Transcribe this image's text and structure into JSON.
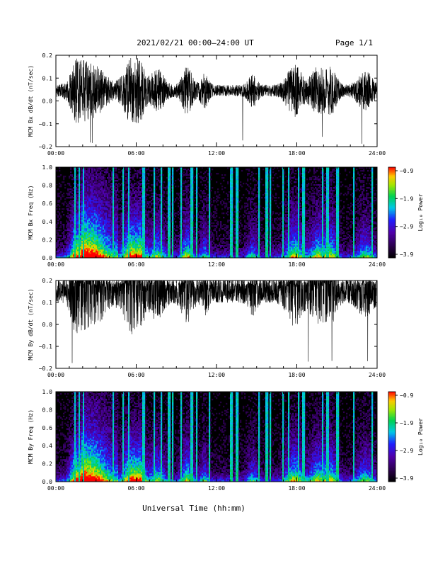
{
  "header": {
    "title": "2021/02/21  00:00–24:00 UT",
    "page": "Page 1/1"
  },
  "footer": {
    "xlabel": "Universal Time (hh:mm)"
  },
  "chart_data": [
    {
      "type": "line",
      "ylabel": "MCM Bx dB/dt (nT/sec)",
      "xticks": [
        "00:00",
        "06:00",
        "12:00",
        "18:00",
        "24:00"
      ],
      "xlim": [
        0,
        24
      ],
      "ylim": [
        -0.2,
        0.2
      ],
      "yticks": [
        "0.2",
        "0.1",
        "0.0",
        "−0.1",
        "−0.2"
      ],
      "series": [
        {
          "color": "#000000"
        }
      ]
    },
    {
      "type": "heatmap",
      "ylabel": "MCM Bx Freq (Hz)",
      "xticks": [
        "00:00",
        "06:00",
        "12:00",
        "18:00",
        "24:00"
      ],
      "xlim": [
        0,
        24
      ],
      "ylim": [
        0,
        1.0
      ],
      "yticks": [
        "1.0",
        "0.8",
        "0.6",
        "0.4",
        "0.2",
        "0.0"
      ],
      "colorbar": {
        "label": "Log₁₀ Power",
        "ticks": [
          "−0.9",
          "−1.9",
          "−2.9",
          "−3.9"
        ],
        "range": [
          -3.9,
          -0.9
        ]
      }
    },
    {
      "type": "line",
      "ylabel": "MCM By dB/dt (nT/sec)",
      "xticks": [
        "00:00",
        "06:00",
        "12:00",
        "18:00",
        "24:00"
      ],
      "xlim": [
        0,
        24
      ],
      "ylim": [
        -0.2,
        0.2
      ],
      "yticks": [
        "0.2",
        "0.1",
        "0.0",
        "−0.1",
        "−0.2"
      ],
      "series": [
        {
          "color": "#000000"
        }
      ]
    },
    {
      "type": "heatmap",
      "ylabel": "MCM By Freq (Hz)",
      "xticks": [
        "00:00",
        "06:00",
        "12:00",
        "18:00",
        "24:00"
      ],
      "xlim": [
        0,
        24
      ],
      "ylim": [
        0,
        1.0
      ],
      "yticks": [
        "1.0",
        "0.8",
        "0.6",
        "0.4",
        "0.2",
        "0.0"
      ],
      "colorbar": {
        "label": "Log₁₀ Power",
        "ticks": [
          "−0.9",
          "−1.9",
          "−2.9",
          "−3.9"
        ],
        "range": [
          -3.9,
          -0.9
        ]
      }
    }
  ]
}
